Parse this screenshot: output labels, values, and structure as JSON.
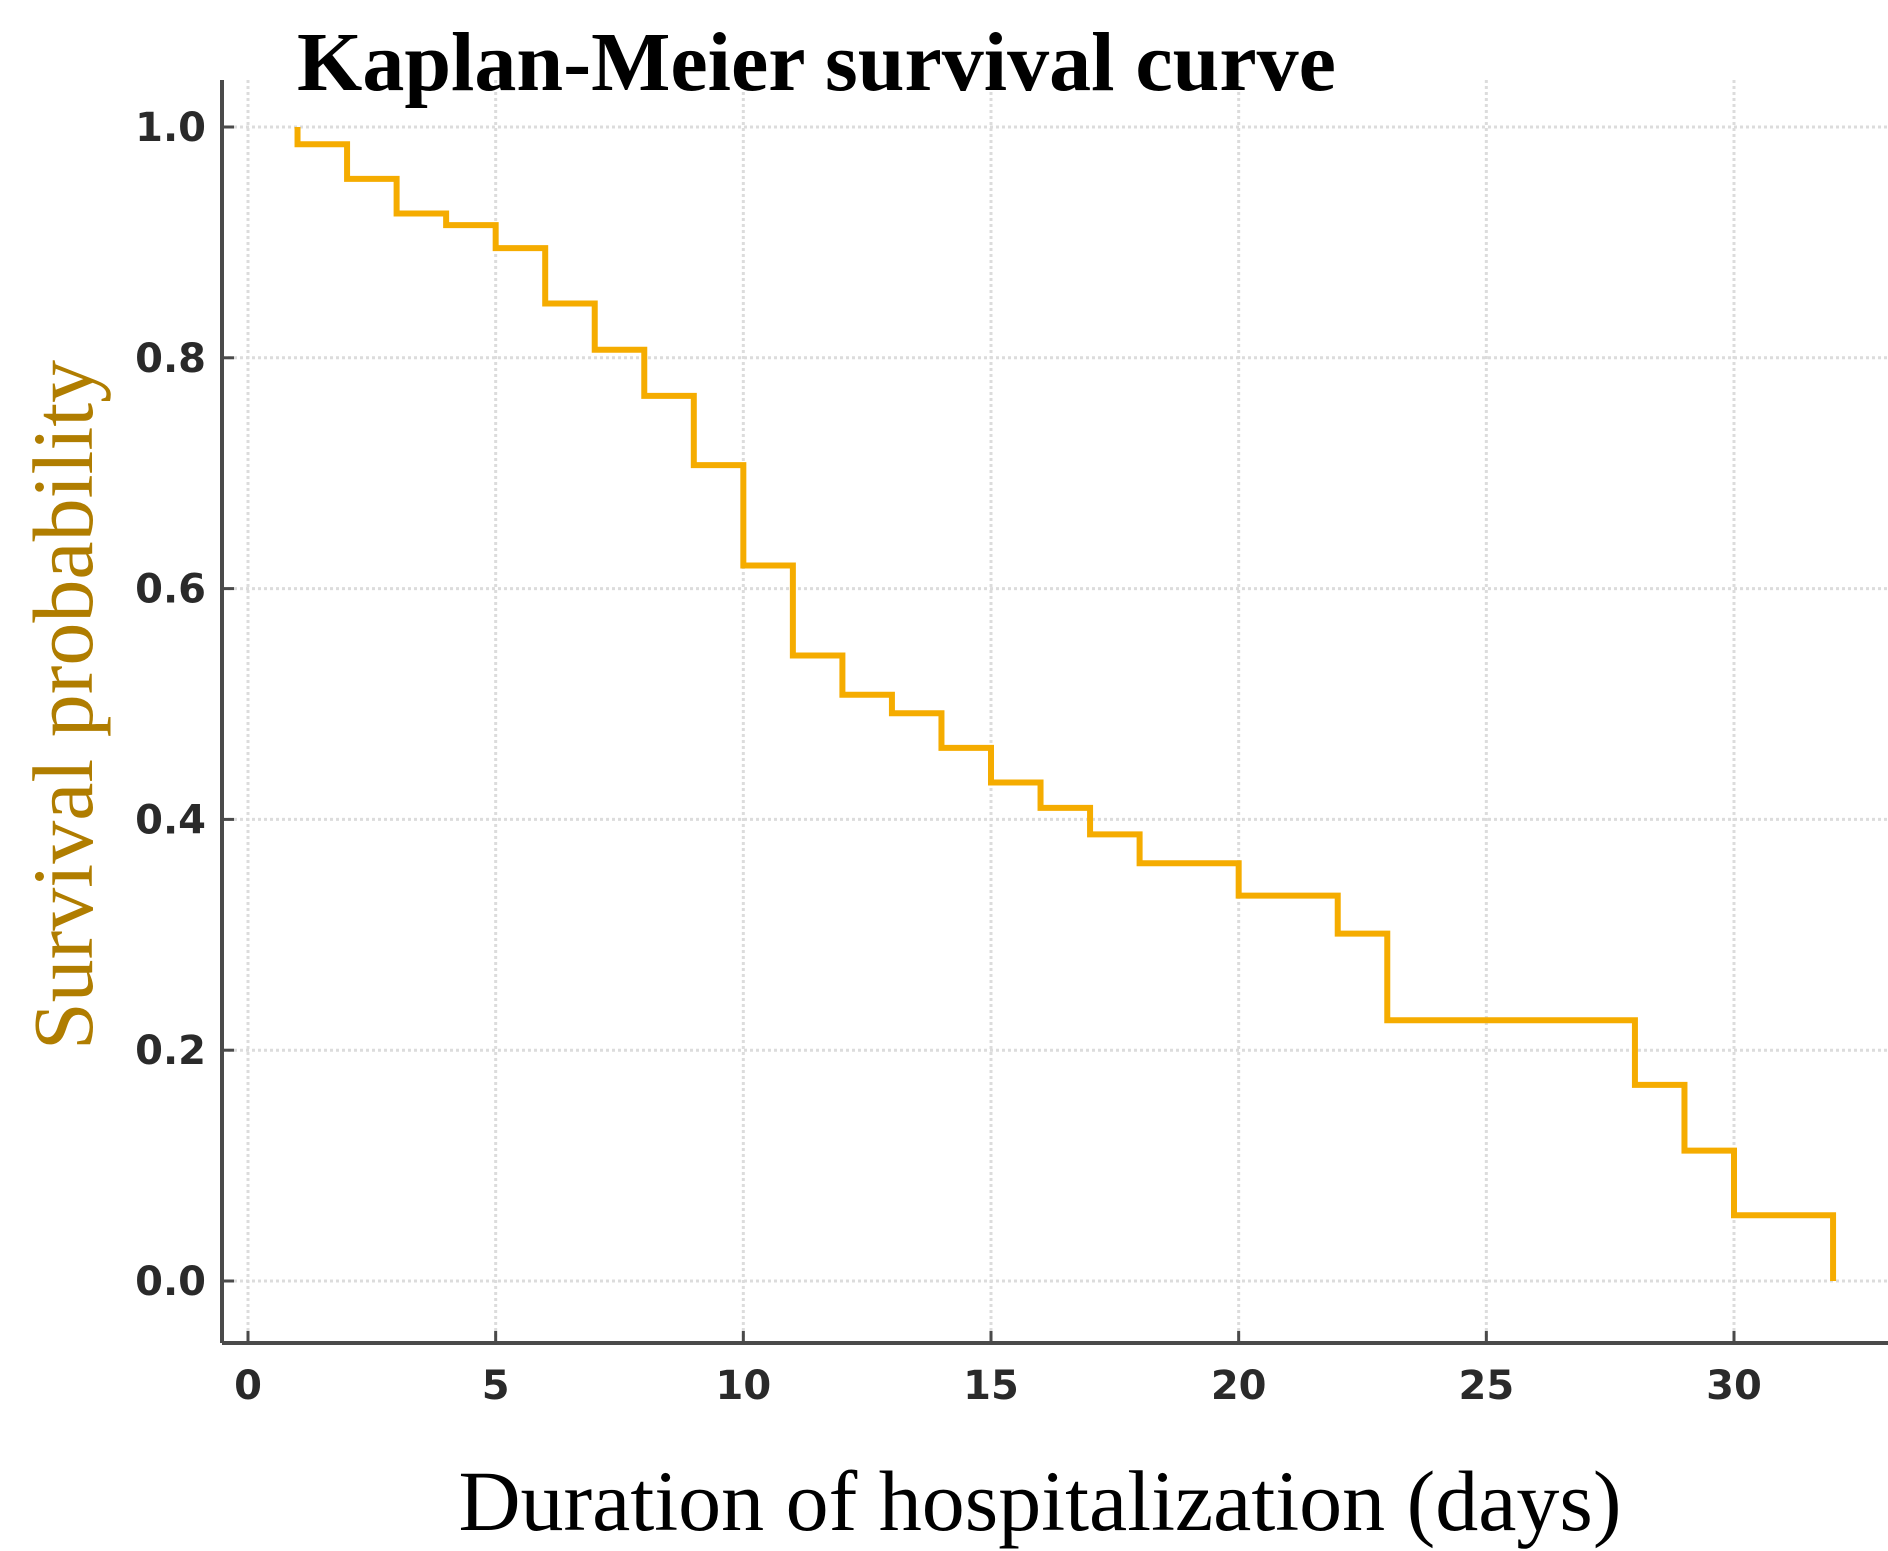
{
  "chart_data": {
    "type": "line",
    "style": "step",
    "title": "Kaplan-Meier survival curve",
    "xlabel": "Duration of hospitalization (days)",
    "ylabel": "Survival probability",
    "xlim": [
      -0.5,
      33
    ],
    "ylim": [
      -0.05,
      1.04
    ],
    "xticks": [
      0,
      5,
      10,
      15,
      20,
      25,
      30
    ],
    "xtick_labels": [
      "0",
      "5",
      "10",
      "15",
      "20",
      "25",
      "30"
    ],
    "yticks": [
      0.0,
      0.2,
      0.4,
      0.6,
      0.8,
      1.0
    ],
    "ytick_labels": [
      "0.0",
      "0.2",
      "0.4",
      "0.6",
      "0.8",
      "1.0"
    ],
    "grid": true,
    "ylabel_color": "#b07d00",
    "series": [
      {
        "name": "Survival probability",
        "color": "#f5ac00",
        "x": [
          1,
          2,
          3,
          4,
          5,
          6,
          7,
          8,
          9,
          10,
          11,
          12,
          13,
          14,
          15,
          16,
          17,
          18,
          20,
          22,
          23,
          28,
          29,
          30,
          32
        ],
        "y": [
          0.985,
          0.955,
          0.925,
          0.915,
          0.895,
          0.847,
          0.807,
          0.767,
          0.707,
          0.62,
          0.542,
          0.508,
          0.492,
          0.462,
          0.432,
          0.41,
          0.387,
          0.362,
          0.334,
          0.301,
          0.226,
          0.17,
          0.113,
          0.057,
          0.0
        ]
      }
    ]
  }
}
